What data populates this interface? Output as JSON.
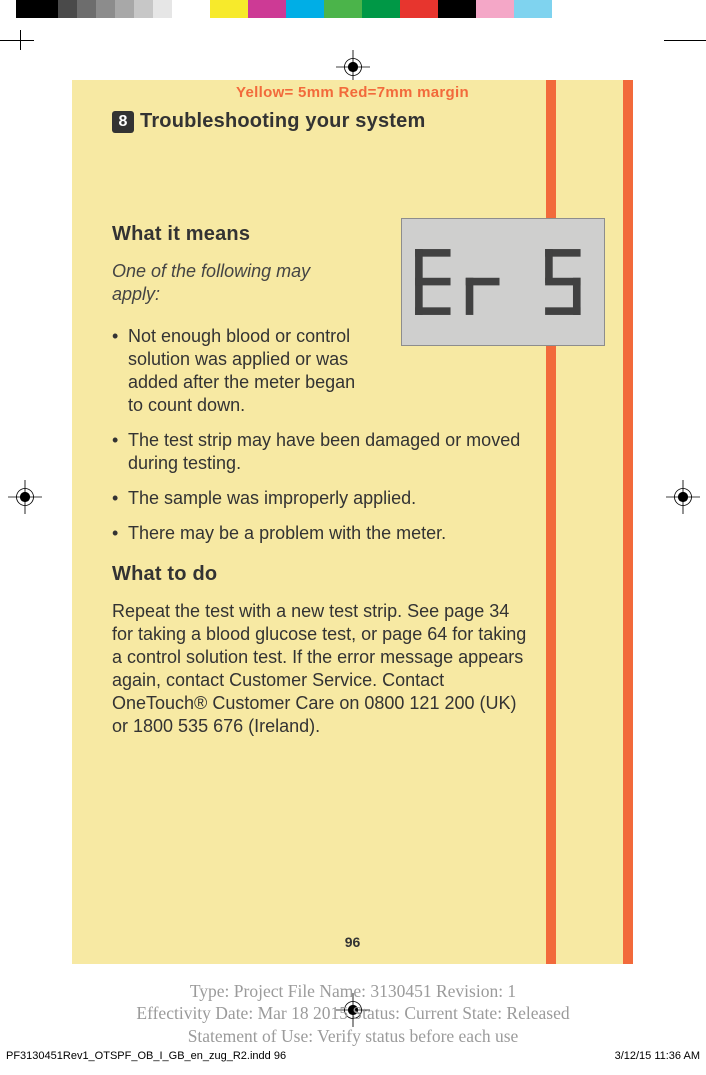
{
  "ruler_colors": [
    "#000000",
    "#4a4a4a",
    "#6d6d6d",
    "#8c8c8c",
    "#a8a8a8",
    "#c7c7c7",
    "#e6e6e6",
    "#ffffff",
    "#f7ea2b",
    "#cd3a95",
    "#00aee6",
    "#4bb44a",
    "#009846",
    "#e7352e",
    "#000000",
    "#f4a7c7",
    "#7fd3ef"
  ],
  "ruler_color_widths": [
    42,
    19,
    19,
    19,
    19,
    19,
    19,
    38,
    38,
    38,
    38,
    38,
    38,
    38,
    38,
    38,
    38
  ],
  "margin_label": "Yellow= 5mm  Red=7mm margin",
  "section": {
    "number": "8",
    "title": "Troubleshooting your system"
  },
  "means": {
    "heading": "What it means",
    "intro": "One of the following may apply:",
    "bullets": [
      "Not enough blood or control solution was applied or was added after the meter began to count down.",
      "The test strip may have been damaged or moved during testing.",
      "The sample was improperly applied.",
      "There may be a problem with the meter."
    ]
  },
  "todo": {
    "heading": "What to do",
    "body": "Repeat the test with a new test strip. See page 34 for taking a blood glucose test, or page 64 for taking a control solution test. If the error message appears again, contact Customer Service. Contact OneTouch® Customer Care on 0800 121 200 (UK) or 1800 535 676 (Ireland)."
  },
  "lcd": {
    "code": "Er 5"
  },
  "page_number": "96",
  "meta": {
    "line1": "Type: Project File  Name: 3130451  Revision: 1",
    "line2": "Effectivity Date: Mar 18 2015     Status: Current     State: Released",
    "line3": "Statement of Use: Verify status before each use"
  },
  "footer": {
    "left": "PF3130451Rev1_OTSPF_OB_I_GB_en_zug_R2.indd   96",
    "right": "3/12/15   11:36 AM"
  },
  "colors": {
    "yellow_bg": "#f7e9a3",
    "red_bar": "#f26a3b",
    "lcd_bg": "#cfcfce",
    "lcd_border": "#8d8d8d",
    "text": "#333333",
    "meta_text": "#9b9b9b"
  }
}
